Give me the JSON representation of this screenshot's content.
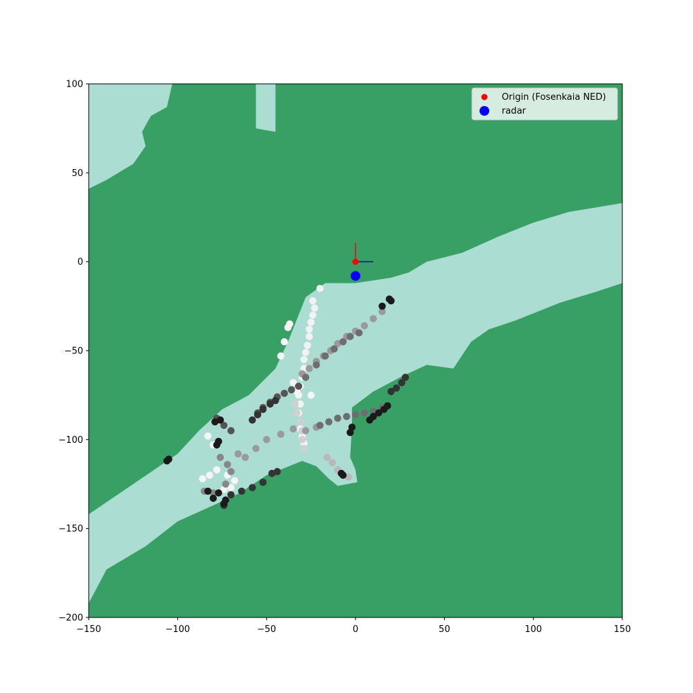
{
  "chart_data": {
    "type": "scatter",
    "title": "",
    "xlabel": "",
    "ylabel": "",
    "xlim": [
      -150,
      150
    ],
    "ylim": [
      -200,
      100
    ],
    "x_ticks": [
      -150,
      -100,
      -50,
      0,
      50,
      100,
      150
    ],
    "y_ticks": [
      100,
      50,
      0,
      -50,
      -100,
      -150,
      -200
    ],
    "x_tick_labels": [
      "−150",
      "−100",
      "−50",
      "0",
      "50",
      "100",
      "150"
    ],
    "y_tick_labels": [
      "100",
      "50",
      "0",
      "−50",
      "−100",
      "−150",
      "−200"
    ],
    "grid": false,
    "legend_position": "top-right",
    "colors": {
      "land": "#38a065",
      "water": "#acddd3",
      "origin": "#ff0000",
      "radar": "#0000ff",
      "axis_x_arrow": "#0000ff",
      "axis_y_arrow": "#ff0000"
    },
    "background": {
      "land_color": "#38a065",
      "water_polygons": [
        [
          [
            -150,
            41
          ],
          [
            -140,
            46
          ],
          [
            -125,
            55
          ],
          [
            -118,
            65
          ],
          [
            -120,
            73
          ],
          [
            -115,
            82
          ],
          [
            -106,
            87
          ],
          [
            -103,
            100
          ],
          [
            -150,
            100
          ]
        ],
        [
          [
            -56,
            100
          ],
          [
            -56,
            75
          ],
          [
            -45,
            73
          ],
          [
            -45,
            100
          ]
        ],
        [
          [
            -150,
            -142
          ],
          [
            -125,
            -125
          ],
          [
            -100,
            -108
          ],
          [
            -88,
            -95
          ],
          [
            -75,
            -83
          ],
          [
            -60,
            -75
          ],
          [
            -45,
            -60
          ],
          [
            -38,
            -45
          ],
          [
            -28,
            -20
          ],
          [
            -17,
            -12
          ],
          [
            0,
            -12
          ],
          [
            20,
            -9
          ],
          [
            30,
            -6
          ],
          [
            40,
            0
          ],
          [
            60,
            5
          ],
          [
            80,
            14
          ],
          [
            100,
            22
          ],
          [
            120,
            28
          ],
          [
            150,
            33
          ],
          [
            150,
            -12
          ],
          [
            135,
            -17
          ],
          [
            115,
            -23
          ],
          [
            90,
            -33
          ],
          [
            75,
            -38
          ],
          [
            65,
            -45
          ],
          [
            55,
            -60
          ],
          [
            40,
            -58
          ],
          [
            25,
            -65
          ],
          [
            10,
            -73
          ],
          [
            -2,
            -82
          ],
          [
            -2,
            -92
          ],
          [
            -3,
            -110
          ],
          [
            0,
            -117
          ],
          [
            1,
            -124
          ],
          [
            -10,
            -126
          ],
          [
            -15,
            -122
          ],
          [
            -22,
            -115
          ],
          [
            -30,
            -112
          ],
          [
            -50,
            -120
          ],
          [
            -65,
            -130
          ],
          [
            -80,
            -137
          ],
          [
            -100,
            -146
          ],
          [
            -118,
            -160
          ],
          [
            -140,
            -173
          ],
          [
            -150,
            -192
          ]
        ]
      ]
    },
    "series": [
      {
        "name": "Origin (Fosenkaia NED)",
        "color": "#ff0000",
        "marker": "circle",
        "points": [
          {
            "x": 0,
            "y": 0
          }
        ]
      },
      {
        "name": "radar",
        "color": "#0000ff",
        "marker": "circle",
        "points": [
          {
            "x": 0,
            "y": -8
          }
        ]
      }
    ],
    "tracks": [
      {
        "color": "#f2f2f2",
        "points": [
          [
            -20,
            -15
          ],
          [
            -24,
            -22
          ],
          [
            -23,
            -26
          ],
          [
            -24,
            -30
          ],
          [
            -25,
            -34
          ],
          [
            -26,
            -38
          ],
          [
            -26,
            -42
          ],
          [
            -27,
            -47
          ],
          [
            -28,
            -51
          ],
          [
            -29,
            -55
          ],
          [
            -29,
            -60
          ],
          [
            -30,
            -65
          ],
          [
            -31,
            -70
          ],
          [
            -32,
            -75
          ],
          [
            -31,
            -80
          ],
          [
            -32,
            -85
          ],
          [
            -31,
            -90
          ],
          [
            -31,
            -94
          ],
          [
            -30,
            -98
          ],
          [
            -29,
            -102
          ]
        ]
      },
      {
        "color": "#f5f5f5",
        "points": [
          [
            -37,
            -35
          ],
          [
            -38,
            -37
          ],
          [
            -40,
            -45
          ],
          [
            -42,
            -53
          ],
          [
            -35,
            -68
          ],
          [
            -33,
            -73
          ],
          [
            -25,
            -75
          ],
          [
            -83,
            -98
          ],
          [
            -80,
            -103
          ],
          [
            -74,
            -128
          ],
          [
            -70,
            -127
          ],
          [
            -68,
            -123
          ],
          [
            -72,
            -120
          ],
          [
            -78,
            -117
          ],
          [
            -82,
            -120
          ],
          [
            -86,
            -122
          ]
        ]
      },
      {
        "color": "#d0d0d0",
        "points": [
          [
            -29,
            -105
          ],
          [
            -30,
            -100
          ],
          [
            -30,
            -95
          ],
          [
            -31,
            -90
          ],
          [
            -33,
            -85
          ],
          [
            -34,
            -80
          ]
        ]
      },
      {
        "color": "#b8b8b8",
        "points": [
          [
            -16,
            -110
          ],
          [
            -13,
            -113
          ],
          [
            -10,
            -117
          ],
          [
            -7,
            -120
          ],
          [
            -4,
            -121
          ]
        ]
      },
      {
        "color": "#9a9a9a",
        "points": [
          [
            15,
            -28
          ],
          [
            10,
            -32
          ],
          [
            5,
            -36
          ],
          [
            0,
            -39
          ],
          [
            -5,
            -42
          ],
          [
            -10,
            -46
          ],
          [
            -14,
            -50
          ],
          [
            -18,
            -53
          ],
          [
            -22,
            -56
          ],
          [
            -26,
            -60
          ],
          [
            -30,
            -63
          ],
          [
            -62,
            -110
          ],
          [
            -66,
            -108
          ],
          [
            -56,
            -105
          ],
          [
            -50,
            -100
          ],
          [
            -42,
            -97
          ],
          [
            -35,
            -94
          ],
          [
            -28,
            -95
          ],
          [
            -22,
            -93
          ]
        ]
      },
      {
        "color": "#888888",
        "points": [
          [
            -76,
            -110
          ],
          [
            -72,
            -114
          ],
          [
            -70,
            -118
          ],
          [
            -73,
            -125
          ],
          [
            -80,
            -130
          ],
          [
            -85,
            -129
          ]
        ]
      },
      {
        "color": "#6e6e6e",
        "points": [
          [
            -28,
            -65
          ],
          [
            -22,
            -58
          ],
          [
            -17,
            -53
          ],
          [
            -12,
            -49
          ],
          [
            -7,
            -45
          ],
          [
            -3,
            -42
          ],
          [
            2,
            -40
          ],
          [
            -20,
            -92
          ],
          [
            -15,
            -90
          ],
          [
            -10,
            -88
          ],
          [
            -5,
            -87
          ],
          [
            0,
            -86
          ],
          [
            5,
            -85
          ],
          [
            10,
            -84
          ],
          [
            15,
            -82
          ]
        ]
      },
      {
        "color": "#555555",
        "points": [
          [
            -55,
            -85
          ],
          [
            -52,
            -82
          ],
          [
            -48,
            -79
          ],
          [
            -44,
            -76
          ],
          [
            -40,
            -74
          ],
          [
            -36,
            -72
          ],
          [
            -32,
            -70
          ],
          [
            -78,
            -88
          ],
          [
            -74,
            -92
          ],
          [
            -70,
            -95
          ]
        ]
      },
      {
        "color": "#333333",
        "points": [
          [
            -58,
            -89
          ],
          [
            -55,
            -86
          ],
          [
            -52,
            -83
          ],
          [
            -48,
            -80
          ],
          [
            -45,
            -78
          ],
          [
            -74,
            -137
          ],
          [
            -70,
            -131
          ],
          [
            -64,
            -129
          ],
          [
            -58,
            -127
          ],
          [
            -52,
            -124
          ],
          [
            -47,
            -119
          ],
          [
            -44,
            -118
          ],
          [
            20,
            -73
          ],
          [
            23,
            -71
          ],
          [
            26,
            -68
          ],
          [
            28,
            -65
          ]
        ]
      },
      {
        "color": "#1a1a1a",
        "points": [
          [
            -106,
            -112
          ],
          [
            -105,
            -111
          ],
          [
            -78,
            -103
          ],
          [
            -77,
            -101
          ],
          [
            -79,
            -90
          ],
          [
            -76,
            -89
          ],
          [
            -77,
            -130
          ],
          [
            -83,
            -129
          ],
          [
            -80,
            -133
          ],
          [
            -73,
            -134
          ],
          [
            -74,
            -136
          ],
          [
            15,
            -25
          ],
          [
            19,
            -21
          ],
          [
            20,
            -22
          ],
          [
            -2,
            -93
          ],
          [
            -3,
            -96
          ],
          [
            -8,
            -119
          ],
          [
            -7,
            -120
          ],
          [
            8,
            -89
          ],
          [
            10,
            -87
          ],
          [
            13,
            -85
          ],
          [
            16,
            -83
          ],
          [
            18,
            -81
          ]
        ]
      }
    ]
  }
}
